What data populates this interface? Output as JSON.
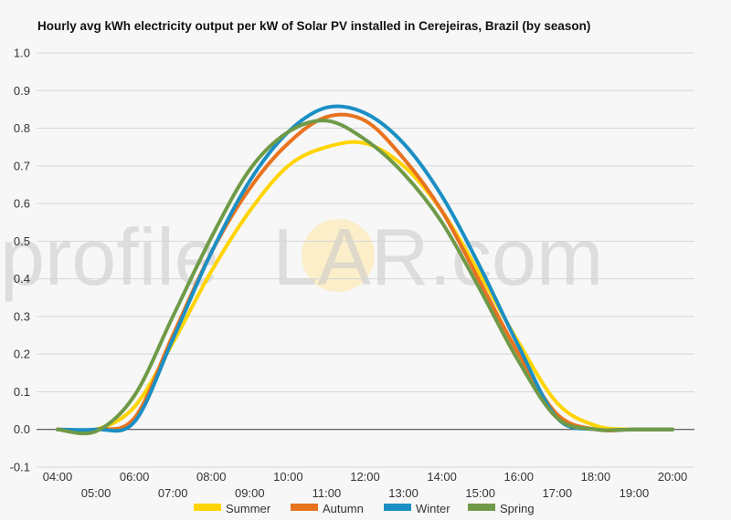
{
  "chart_data": {
    "type": "line",
    "title": "Hourly avg kWh electricity output per kW of Solar PV installed in Cerejeiras, Brazil (by season)",
    "xlabel": "",
    "ylabel": "",
    "x": [
      "04:00",
      "05:00",
      "06:00",
      "07:00",
      "08:00",
      "09:00",
      "10:00",
      "11:00",
      "12:00",
      "13:00",
      "14:00",
      "15:00",
      "16:00",
      "17:00",
      "18:00",
      "19:00",
      "20:00"
    ],
    "ylim": [
      -0.1,
      1.0
    ],
    "yticks": [
      "-0.1",
      "0.0",
      "0.1",
      "0.2",
      "0.3",
      "0.4",
      "0.5",
      "0.6",
      "0.7",
      "0.8",
      "0.9",
      "1.0"
    ],
    "grid": true,
    "legend_position": "bottom",
    "series": [
      {
        "name": "Summer",
        "color": "#ffd400",
        "values": [
          0.0,
          0.0,
          0.06,
          0.23,
          0.42,
          0.58,
          0.7,
          0.75,
          0.76,
          0.7,
          0.58,
          0.41,
          0.23,
          0.07,
          0.01,
          0.0,
          0.0
        ]
      },
      {
        "name": "Autumn",
        "color": "#e8731e",
        "values": [
          0.0,
          0.0,
          0.03,
          0.25,
          0.47,
          0.64,
          0.76,
          0.83,
          0.82,
          0.72,
          0.58,
          0.39,
          0.2,
          0.04,
          0.0,
          0.0,
          0.0
        ]
      },
      {
        "name": "Winter",
        "color": "#1b8fc4",
        "values": [
          0.0,
          0.0,
          0.02,
          0.24,
          0.47,
          0.66,
          0.79,
          0.855,
          0.84,
          0.76,
          0.62,
          0.43,
          0.22,
          0.03,
          0.0,
          0.0,
          0.0
        ]
      },
      {
        "name": "Spring",
        "color": "#6f9a48",
        "values": [
          0.0,
          -0.005,
          0.09,
          0.3,
          0.51,
          0.69,
          0.79,
          0.82,
          0.77,
          0.68,
          0.55,
          0.37,
          0.18,
          0.03,
          0.0,
          0.0,
          0.0
        ]
      }
    ]
  },
  "watermark": {
    "part1": "profile",
    "part2": "S",
    "part3": "LAR.com",
    "sun_color": "#fde9b0"
  }
}
